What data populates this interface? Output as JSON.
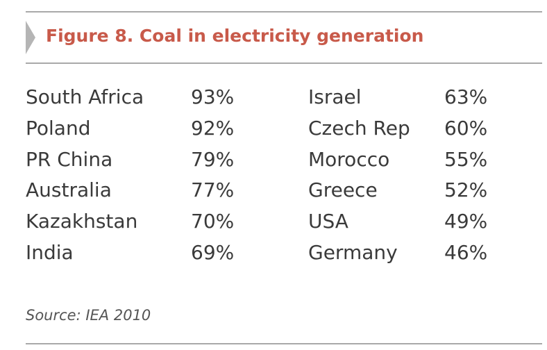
{
  "figure": {
    "title": "Figure 8. Coal in electricity generation",
    "source": "Source: IEA 2010",
    "accent_color": "#c85a4a"
  },
  "rows": [
    {
      "left_country": "South Africa",
      "left_value": "93%",
      "right_country": "Israel",
      "right_value": "63%"
    },
    {
      "left_country": "Poland",
      "left_value": "92%",
      "right_country": "Czech Rep",
      "right_value": "60%"
    },
    {
      "left_country": "PR China",
      "left_value": "79%",
      "right_country": "Morocco",
      "right_value": "55%"
    },
    {
      "left_country": "Australia",
      "left_value": "77%",
      "right_country": "Greece",
      "right_value": "52%"
    },
    {
      "left_country": "Kazakhstan",
      "left_value": "70%",
      "right_country": "USA",
      "right_value": "49%"
    },
    {
      "left_country": "India",
      "left_value": "69%",
      "right_country": "Germany",
      "right_value": "46%"
    }
  ]
}
